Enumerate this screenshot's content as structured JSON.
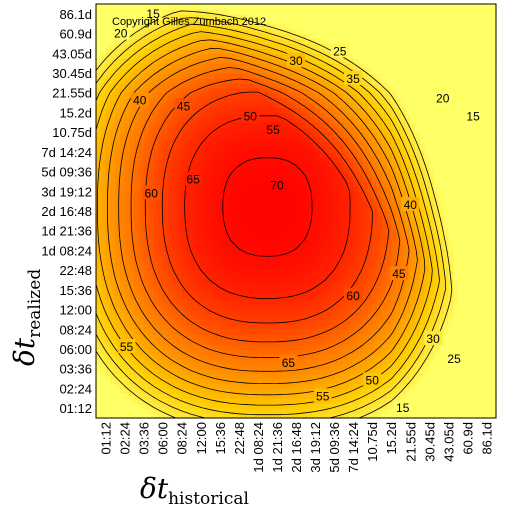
{
  "chart_data": {
    "type": "heatmap",
    "title": "",
    "credit": "Copyright Gilles Zumbach 2012",
    "xlabel": {
      "symbol": "δt",
      "subscript": "historical"
    },
    "ylabel": {
      "symbol": "δt",
      "subscript": "realized"
    },
    "ticks": [
      "01:12",
      "02:24",
      "03:36",
      "06:00",
      "08:24",
      "12:00",
      "15:36",
      "22:48",
      "1d 08:24",
      "1d 21:36",
      "2d 16:48",
      "3d 19:12",
      "5d 09:36",
      "7d 14:24",
      "10.75d",
      "15.2d",
      "21.55d",
      "30.45d",
      "43.05d",
      "60.9d",
      "86.1d"
    ],
    "contour_levels": [
      15,
      20,
      25,
      30,
      35,
      40,
      45,
      50,
      55,
      60,
      65,
      70
    ],
    "contour_labels": [
      {
        "text": "15",
        "xi": 2.5,
        "yi": 20.0
      },
      {
        "text": "20",
        "xi": 0.8,
        "yi": 19.0
      },
      {
        "text": "25",
        "xi": 12.3,
        "yi": 18.1
      },
      {
        "text": "30",
        "xi": 10.0,
        "yi": 17.6
      },
      {
        "text": "35",
        "xi": 13.0,
        "yi": 16.7
      },
      {
        "text": "20",
        "xi": 17.7,
        "yi": 15.7
      },
      {
        "text": "15",
        "xi": 19.3,
        "yi": 14.8
      },
      {
        "text": "40",
        "xi": 1.8,
        "yi": 15.6
      },
      {
        "text": "45",
        "xi": 4.1,
        "yi": 15.3
      },
      {
        "text": "50",
        "xi": 7.6,
        "yi": 14.8
      },
      {
        "text": "55",
        "xi": 8.8,
        "yi": 14.1
      },
      {
        "text": "60",
        "xi": 2.4,
        "yi": 10.9
      },
      {
        "text": "65",
        "xi": 4.6,
        "yi": 11.6
      },
      {
        "text": "70",
        "xi": 9.0,
        "yi": 11.3
      },
      {
        "text": "40",
        "xi": 16.0,
        "yi": 10.3
      },
      {
        "text": "45",
        "xi": 15.4,
        "yi": 6.8
      },
      {
        "text": "60",
        "xi": 13.0,
        "yi": 5.7
      },
      {
        "text": "30",
        "xi": 17.2,
        "yi": 3.5
      },
      {
        "text": "25",
        "xi": 18.3,
        "yi": 2.5
      },
      {
        "text": "55",
        "xi": 1.1,
        "yi": 3.1
      },
      {
        "text": "65",
        "xi": 9.6,
        "yi": 2.3
      },
      {
        "text": "50",
        "xi": 14.0,
        "yi": 1.4
      },
      {
        "text": "55",
        "xi": 11.4,
        "yi": 0.6
      },
      {
        "text": "15",
        "xi": 15.6,
        "yi": 0.0
      }
    ],
    "colormap": [
      "#ffff66",
      "#ffcc00",
      "#ff7700",
      "#ff0000"
    ],
    "value_range": [
      10,
      72
    ]
  }
}
